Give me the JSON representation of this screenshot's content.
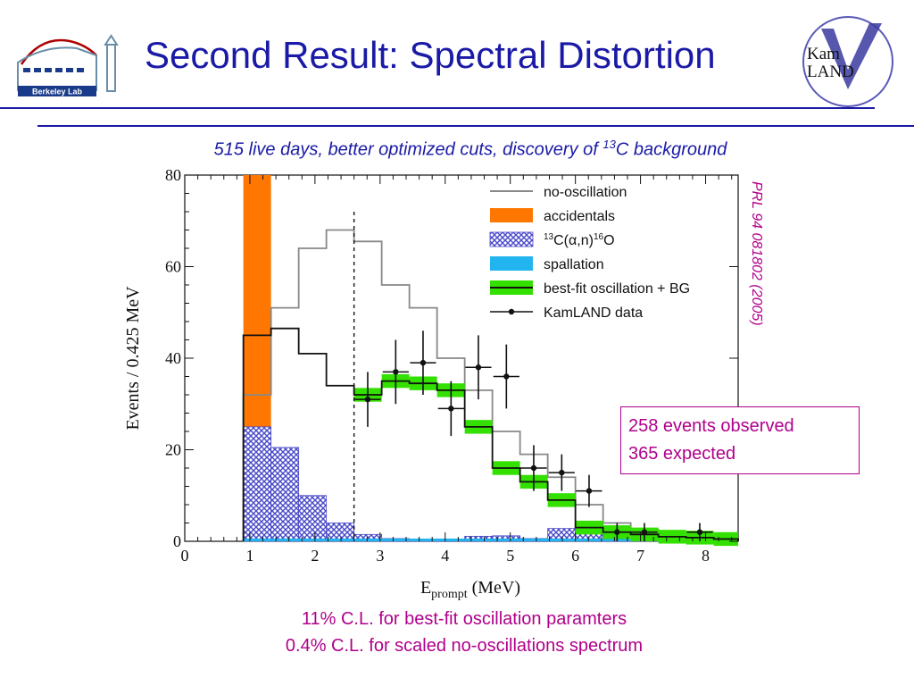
{
  "header": {
    "title": "Second Result:  Spectral Distortion",
    "subtitle_pre": "515 live days, better optimized cuts, discovery of ",
    "subtitle_sup": "13",
    "subtitle_post": "C background"
  },
  "logos": {
    "left_text": "Berkeley Lab",
    "right_line1": "Kam",
    "right_line2": "LAND"
  },
  "reference": "PRL 94 081802 (2005)",
  "summary": {
    "observed": "258 events observed",
    "expected": "365 expected"
  },
  "footer": {
    "line1": "11% C.L. for best-fit oscillation paramters",
    "line2": "0.4% C.L. for scaled no-oscillations spectrum"
  },
  "colors": {
    "title": "#1a1aa6",
    "accent": "#b0008a",
    "accidentals": "#ff7700",
    "c13": "#4a4ac8",
    "spallation": "#22b4ee",
    "bestfit_band": "#33e000",
    "no_oscillation": "#888888"
  },
  "chart_data": {
    "type": "histogram",
    "xlabel_main": "E",
    "xlabel_sub": "prompt",
    "xlabel_unit": " (MeV)",
    "ylabel": "Events / 0.425 MeV",
    "xlim": [
      0,
      8.5
    ],
    "ylim": [
      0,
      80
    ],
    "xticks": [
      "0",
      "1",
      "2",
      "3",
      "4",
      "5",
      "6",
      "7",
      "8"
    ],
    "yticks": [
      "0",
      "20",
      "40",
      "60",
      "80"
    ],
    "analysis_threshold": 2.6,
    "bin_edges": [
      0.9,
      1.325,
      1.75,
      2.175,
      2.6,
      3.025,
      3.45,
      3.875,
      4.3,
      4.725,
      5.15,
      5.575,
      6.0,
      6.425,
      6.85,
      7.275,
      7.7,
      8.125,
      8.5
    ],
    "series": [
      {
        "name": "no-oscillation",
        "values": [
          32,
          51,
          64,
          68,
          65.5,
          56,
          51,
          40,
          33,
          24,
          19,
          14,
          8,
          4,
          2.5,
          1,
          0.5,
          0.2
        ]
      },
      {
        "name": "accidentals",
        "values": [
          80,
          5,
          3.5,
          1.8,
          0.5,
          0.3,
          0.2,
          0.2,
          0.2,
          0.2,
          0.2,
          0.2,
          0.2,
          0.2,
          0.2,
          0.2,
          0.2,
          0.2
        ]
      },
      {
        "name": "13C(α,n)16O",
        "values": [
          25,
          20.5,
          10,
          4,
          1.5,
          0.6,
          0.4,
          0.5,
          1.1,
          1.2,
          0.6,
          2.8,
          4.3,
          0.5,
          0.3,
          0.3,
          0.2,
          0.2
        ]
      },
      {
        "name": "spallation",
        "values": [
          0.6,
          0.6,
          0.6,
          0.6,
          0.6,
          0.6,
          0.6,
          0.6,
          0.6,
          0.6,
          0.6,
          0.6,
          0.6,
          0.6,
          0.6,
          0.6,
          0.6,
          0.6
        ]
      },
      {
        "name": "best-fit oscillation + BG",
        "values": [
          45,
          46.5,
          41,
          34,
          32,
          35,
          34.5,
          33,
          25,
          16,
          13,
          9,
          3,
          2,
          1.5,
          1,
          0.8,
          0.5
        ],
        "band": 1.5
      },
      {
        "name": "KamLAND data",
        "points": [
          {
            "x": 2.81,
            "y": 31,
            "err": 6
          },
          {
            "x": 3.24,
            "y": 37,
            "err": 7
          },
          {
            "x": 3.66,
            "y": 39,
            "err": 7
          },
          {
            "x": 4.09,
            "y": 29,
            "err": 6
          },
          {
            "x": 4.51,
            "y": 38,
            "err": 7
          },
          {
            "x": 4.94,
            "y": 36,
            "err": 7
          },
          {
            "x": 5.36,
            "y": 16,
            "err": 5
          },
          {
            "x": 5.79,
            "y": 15,
            "err": 4
          },
          {
            "x": 6.21,
            "y": 11,
            "err": 3.5
          },
          {
            "x": 6.64,
            "y": 2,
            "err": 2
          },
          {
            "x": 7.06,
            "y": 2,
            "err": 2
          },
          {
            "x": 7.91,
            "y": 2,
            "err": 2
          }
        ]
      }
    ],
    "legend": [
      {
        "label": "no-oscillation",
        "style": "line-gray"
      },
      {
        "label_pre": "13",
        "label_main": "C(α,n)",
        "label_sup2": "16",
        "label_post": "O",
        "style": "hatch"
      },
      {
        "label": "accidentals",
        "style": "fill-orange"
      },
      {
        "label": "spallation",
        "style": "fill-cyan"
      },
      {
        "label": "best-fit oscillation + BG",
        "style": "band-green"
      },
      {
        "label": "KamLAND data",
        "style": "marker"
      }
    ],
    "legend_position": "top-right"
  }
}
